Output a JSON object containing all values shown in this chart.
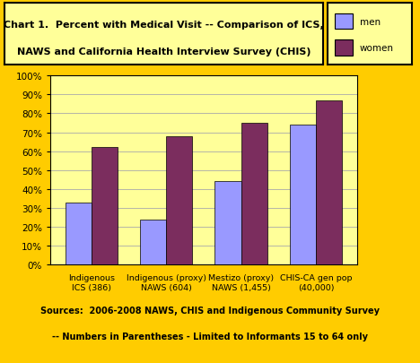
{
  "title_line1": "Chart 1.  Percent with Medical Visit -- Comparison of ICS,",
  "title_line2": "NAWS and California Health Interview Survey (CHIS)",
  "categories": [
    "Indigenous\nICS (386)",
    "Indigenous (proxy)\nNAWS (604)",
    "Mestizo (proxy)\nNAWS (1,455)",
    "CHIS-CA gen pop\n(40,000)"
  ],
  "men_values": [
    33,
    24,
    44,
    74
  ],
  "women_values": [
    62,
    68,
    75,
    87
  ],
  "men_color": "#9999FF",
  "women_color": "#7B2D5E",
  "ylim": [
    0,
    100
  ],
  "yticks": [
    0,
    10,
    20,
    30,
    40,
    50,
    60,
    70,
    80,
    90,
    100
  ],
  "background_color": "#FFFF99",
  "outer_background": "#FFCC00",
  "title_box_color": "#FFFF99",
  "grid_color": "#AAAAAA",
  "source_line1": "Sources:  2006-2008 NAWS, CHIS and Indigenous Community Survey",
  "source_line2": "-- Numbers in Parentheses - Limited to Informants 15 to 64 only",
  "legend_men": "men",
  "legend_women": "women",
  "bar_width": 0.35
}
